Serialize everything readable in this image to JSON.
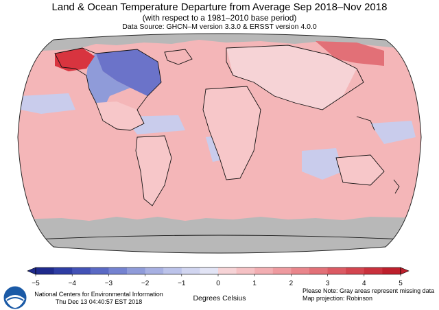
{
  "header": {
    "title": "Land & Ocean Temperature Departure from Average Sep 2018–Nov 2018",
    "subtitle": "(with respect to a 1981–2010 base period)",
    "source": "Data Source: GHCN–M version 3.3.0 & ERSST version 4.0.0"
  },
  "map": {
    "projection_note": "Map projection: Robinson",
    "missing_note": "Please Note: Gray areas represent missing data",
    "colors": {
      "missing": "#b8b8b8",
      "ocean_warm": "#f4b6b8",
      "land_warm": "#f7c7c9",
      "cool": "#c9ccec",
      "cold": "#6b73c9",
      "hot": "#d8343f"
    }
  },
  "colorbar": {
    "ticks": [
      "−5",
      "−4",
      "−3",
      "−2",
      "−1",
      "0",
      "1",
      "2",
      "3",
      "4",
      "5"
    ],
    "units": "Degrees Celsius",
    "min": -5,
    "max": 5,
    "colors": [
      "#1f2a8c",
      "#2e3da3",
      "#4352b6",
      "#5a69c4",
      "#7482d0",
      "#8f9bd9",
      "#a7b0e2",
      "#bcc3ea",
      "#d1d5f0",
      "#e2e4f5",
      "#f6d3d6",
      "#f5c1c4",
      "#f2aeb2",
      "#ee9a9f",
      "#e9858b",
      "#e27077",
      "#db5a63",
      "#d3454f",
      "#c9313d",
      "#bd1f2c"
    ]
  },
  "footer": {
    "org": "National Centers for Environmental Information",
    "timestamp": "Thu Dec 13 04:40:57 EST 2018"
  }
}
